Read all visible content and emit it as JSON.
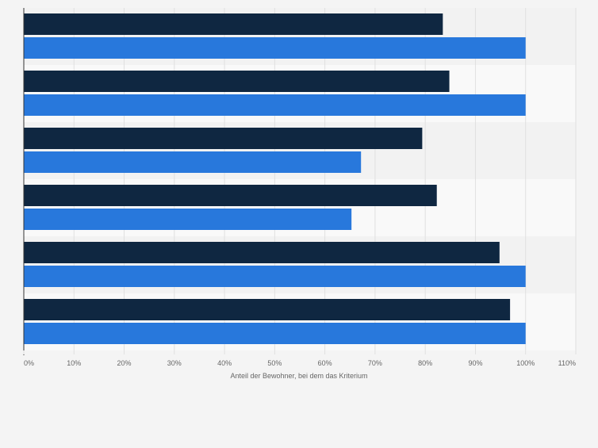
{
  "chart_data": {
    "type": "bar",
    "orientation": "horizontal",
    "categories": [
      "",
      "",
      "",
      "",
      "",
      ""
    ],
    "series": [
      {
        "values": [
          83.5,
          84.8,
          79.4,
          82.3,
          94.8,
          96.9
        ]
      },
      {
        "values": [
          100,
          100,
          67.2,
          65.3,
          100,
          100
        ]
      }
    ],
    "xlabel": "Anteil der Bewohner, bei dem das Kriterium",
    "ylabel": "",
    "xlim": [
      0,
      110
    ],
    "xticks": [
      "0%",
      "10%",
      "20%",
      "30%",
      "40%",
      "50%",
      "60%",
      "70%",
      "80%",
      "90%",
      "100%",
      "110%"
    ],
    "grid": "vertical",
    "legend": "none",
    "colors": {
      "series": [
        "#0f2741",
        "#2878dc"
      ],
      "background": "#f4f4f4",
      "plot_band_light": "#f9f9f9",
      "plot_band_dark": "#f2f2f2",
      "grid": "#e0e0e0",
      "axis": "#333333",
      "tick_text": "#666666"
    }
  }
}
